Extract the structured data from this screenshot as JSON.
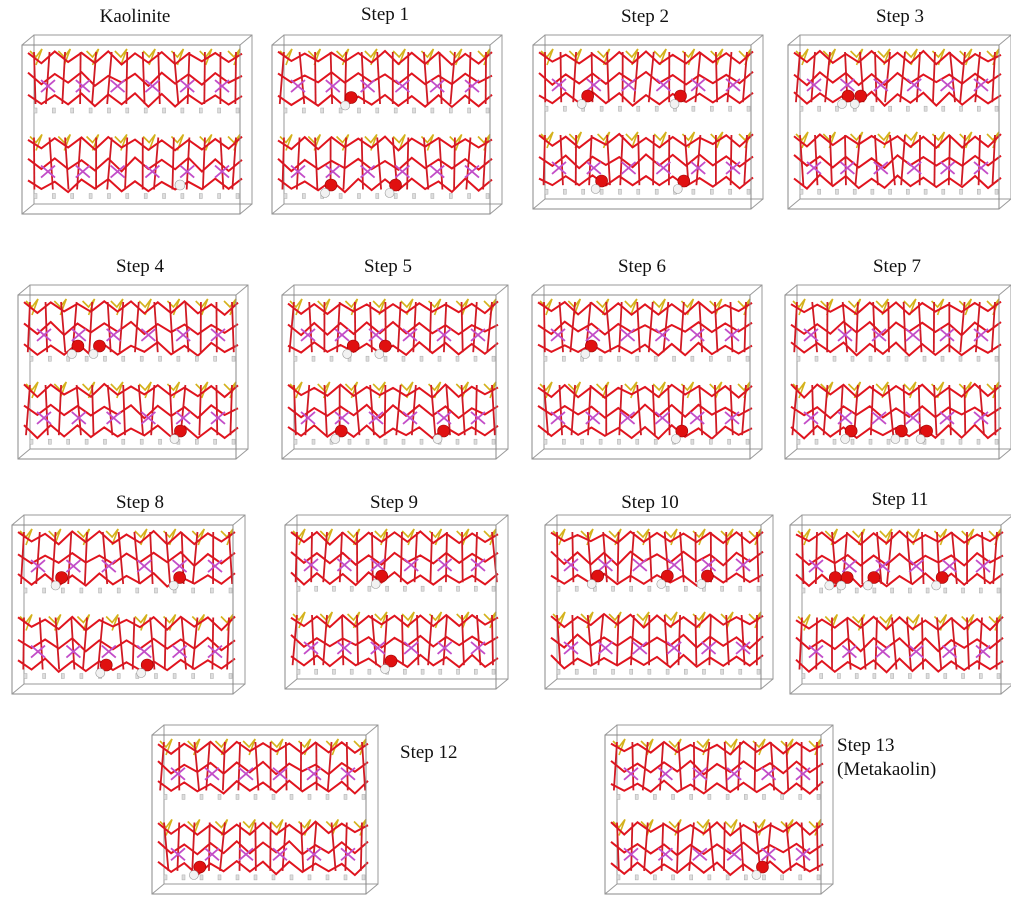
{
  "panels": [
    {
      "label": "Kaolinite"
    },
    {
      "label": "Step 1"
    },
    {
      "label": "Step 2"
    },
    {
      "label": "Step 3"
    },
    {
      "label": "Step 4"
    },
    {
      "label": "Step 5"
    },
    {
      "label": "Step 6"
    },
    {
      "label": "Step 7"
    },
    {
      "label": "Step 8"
    },
    {
      "label": "Step 9"
    },
    {
      "label": "Step 10"
    },
    {
      "label": "Step 11"
    },
    {
      "label": "Step 12"
    },
    {
      "label": "Step 13",
      "note": "(Metakaolin)"
    }
  ]
}
